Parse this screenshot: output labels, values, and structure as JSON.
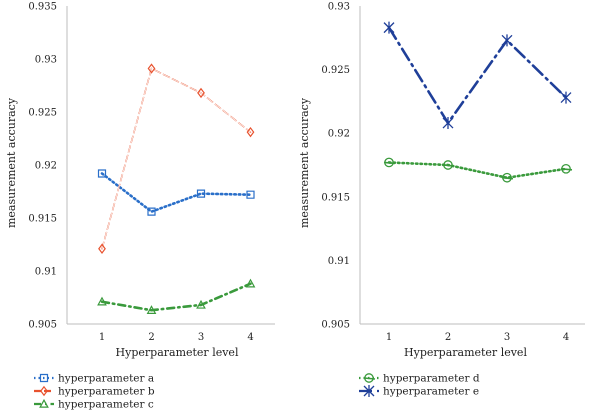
{
  "chart_data": [
    {
      "type": "line",
      "xlabel": "Hyperparameter level",
      "ylabel": "measurement accuracy",
      "x": [
        1,
        2,
        3,
        4
      ],
      "xticks": [
        "1",
        "2",
        "3",
        "4"
      ],
      "ylim": [
        0.905,
        0.935
      ],
      "yticks": [
        "0.905",
        "0.91",
        "0.915",
        "0.92",
        "0.925",
        "0.93",
        "0.935"
      ],
      "grid": false,
      "legend_placement": "bottom",
      "series": [
        {
          "name": "hyperparameter a",
          "values": [
            0.9192,
            0.9156,
            0.9173,
            0.9172
          ],
          "color": "#2a6fc9",
          "marker": "square",
          "dash": "dotted"
        },
        {
          "name": "hyperparameter b",
          "values": [
            0.9121,
            0.9291,
            0.9268,
            0.9231
          ],
          "color": "#e8522e",
          "marker": "diamond",
          "dash": "dashed"
        },
        {
          "name": "hyperparameter c",
          "values": [
            0.9071,
            0.9063,
            0.9068,
            0.9088
          ],
          "color": "#3a9a3c",
          "marker": "triangle",
          "dash": "dashdot"
        }
      ]
    },
    {
      "type": "line",
      "xlabel": "Hyperparameter level",
      "ylabel": "measurement accuracy",
      "x": [
        1,
        2,
        3,
        4
      ],
      "xticks": [
        "1",
        "2",
        "3",
        "4"
      ],
      "ylim": [
        0.905,
        0.93
      ],
      "yticks": [
        "0.905",
        "0.91",
        "0.915",
        "0.92",
        "0.925",
        "0.93"
      ],
      "grid": false,
      "legend_placement": "bottom",
      "series": [
        {
          "name": "hyperparameter d",
          "values": [
            0.9177,
            0.9175,
            0.9165,
            0.9172
          ],
          "color": "#3a9a3c",
          "marker": "circle",
          "dash": "dotted"
        },
        {
          "name": "hyperparameter e",
          "values": [
            0.9283,
            0.9208,
            0.9273,
            0.9228
          ],
          "color": "#1f3f99",
          "marker": "star",
          "dash": "longdashdot"
        }
      ]
    }
  ]
}
